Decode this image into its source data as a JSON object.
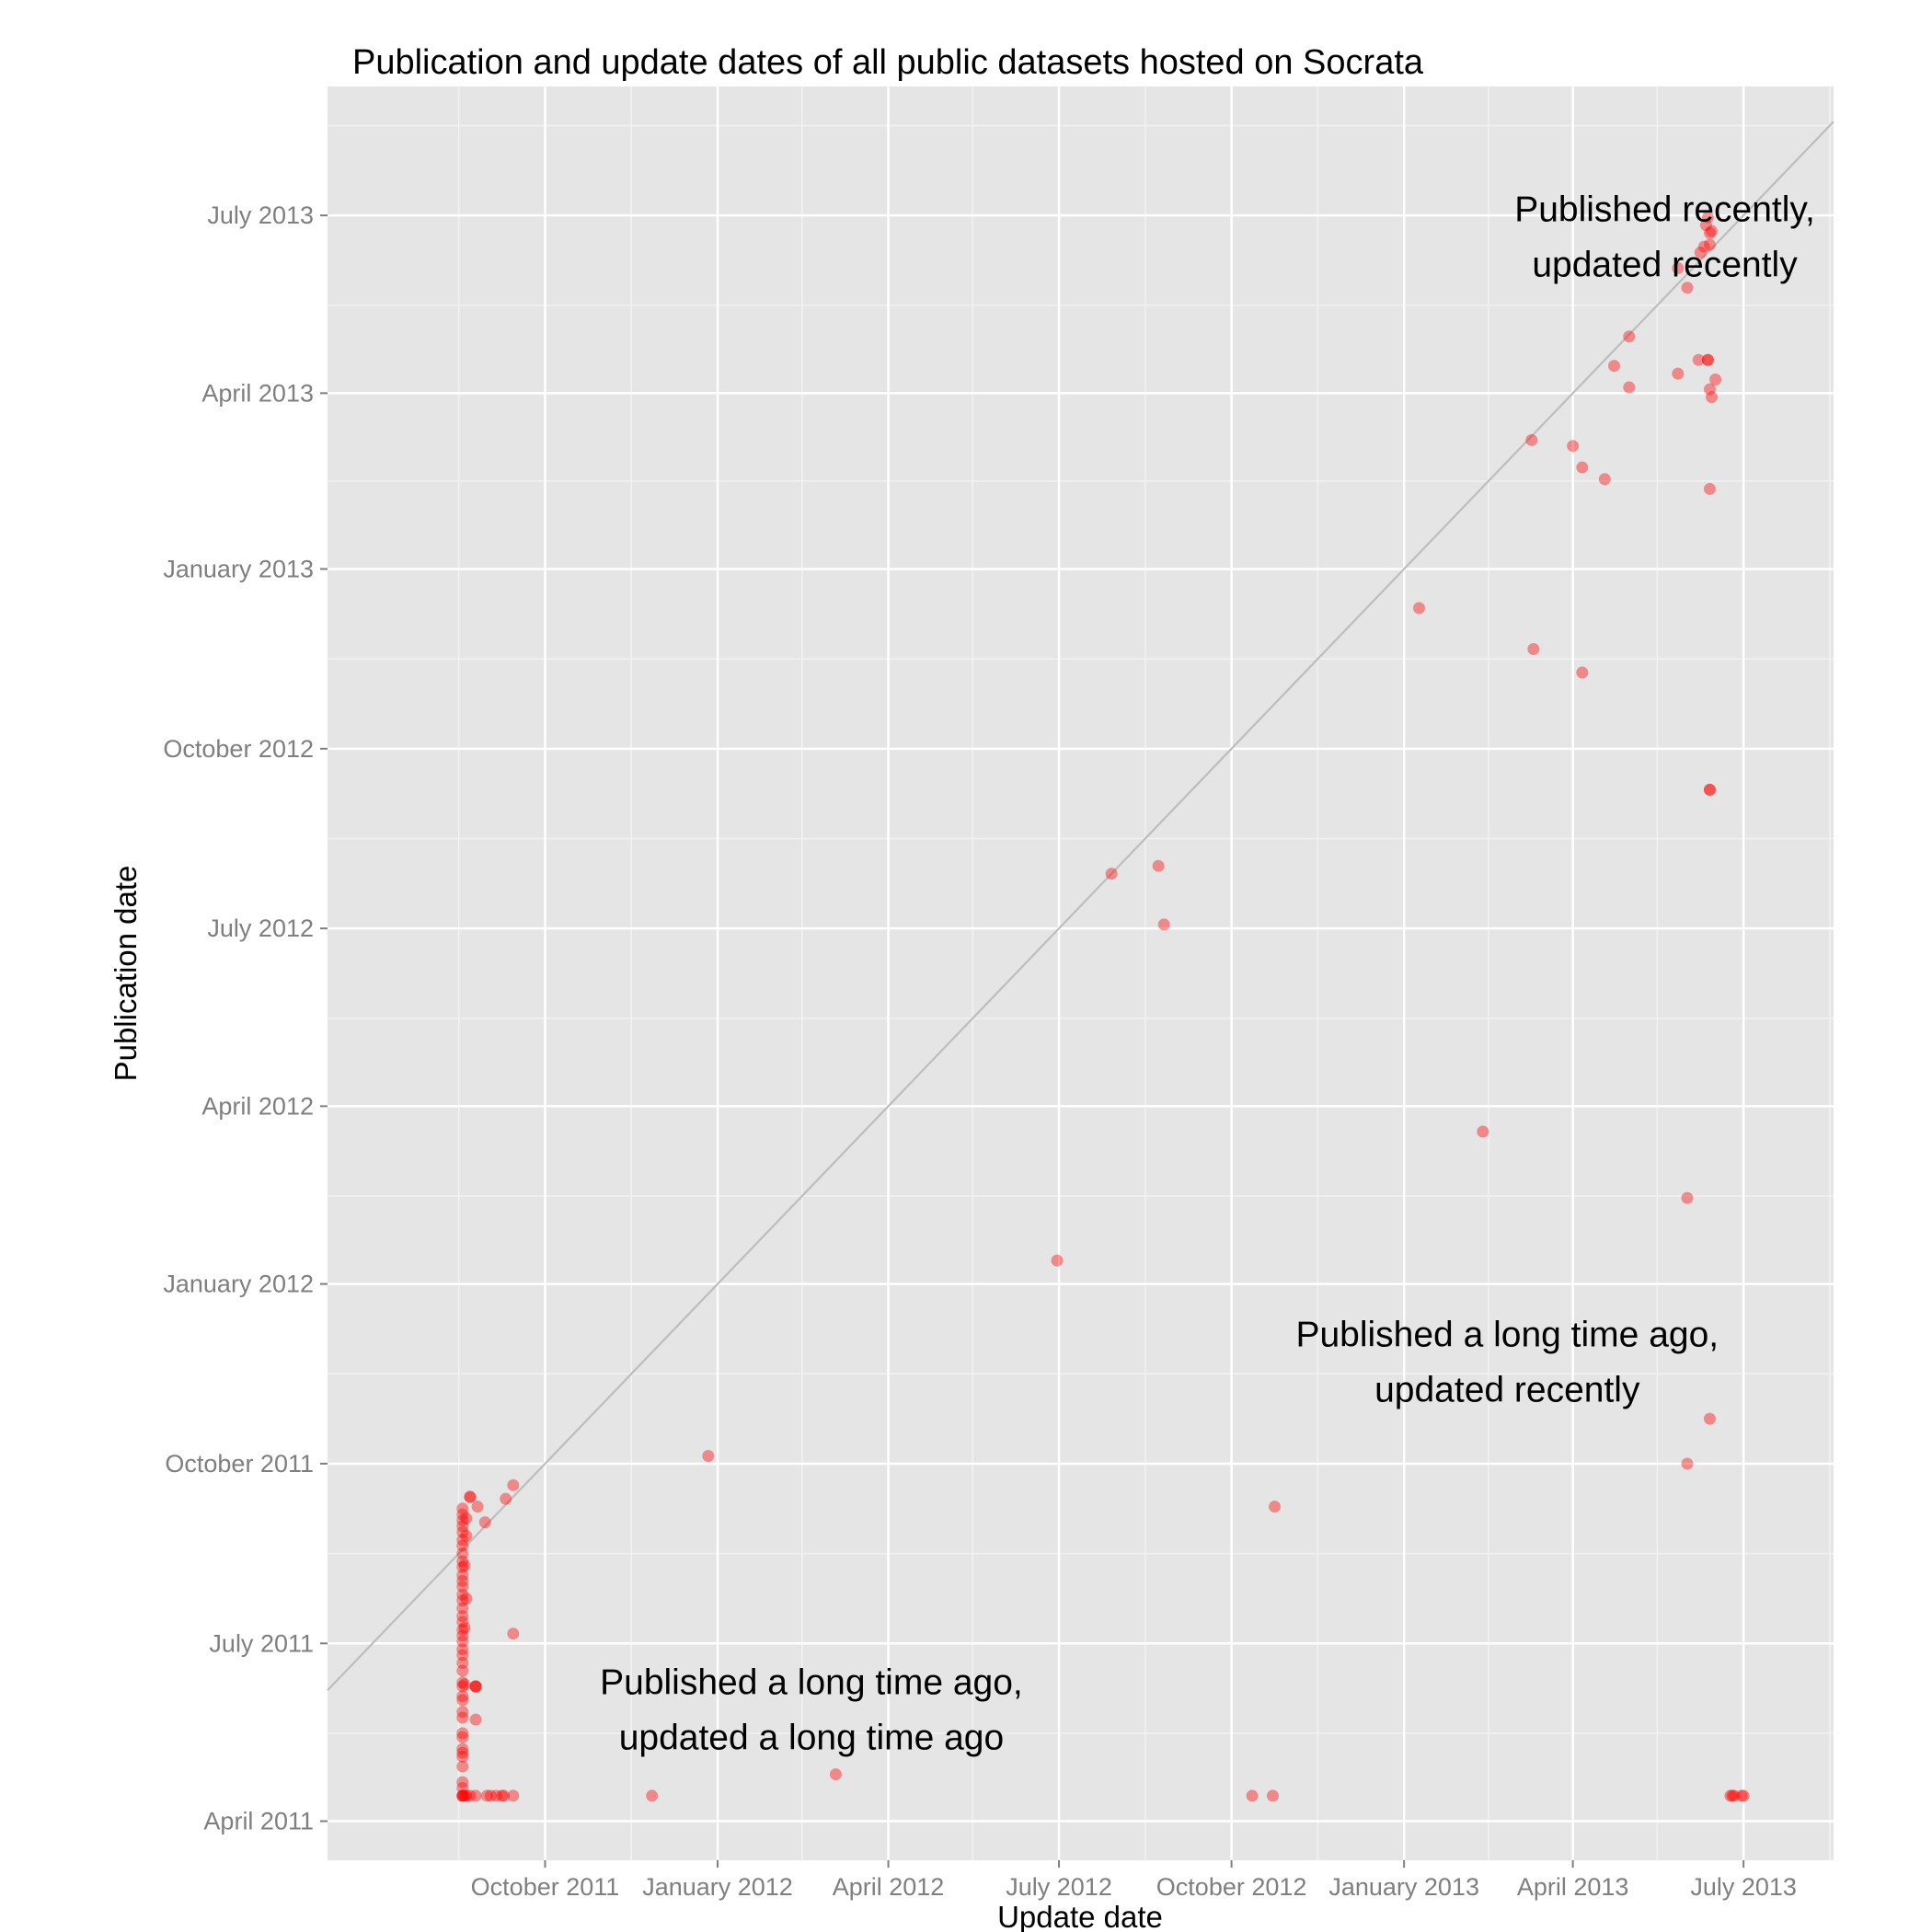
{
  "chart_data": {
    "type": "scatter",
    "title": "Publication and update dates of all public datasets hosted on Socrata",
    "xlabel": "Update date",
    "ylabel": "Publication date",
    "xlim": [
      "2011-06-07",
      "2013-08-18"
    ],
    "ylim": [
      "2011-03-12",
      "2013-09-05"
    ],
    "x_ticks": [
      {
        "date": "2011-10-01",
        "label": "October 2011"
      },
      {
        "date": "2012-01-01",
        "label": "January 2012"
      },
      {
        "date": "2012-04-01",
        "label": "April 2012"
      },
      {
        "date": "2012-07-01",
        "label": "July 2012"
      },
      {
        "date": "2012-10-01",
        "label": "October 2012"
      },
      {
        "date": "2013-01-01",
        "label": "January 2013"
      },
      {
        "date": "2013-04-01",
        "label": "April 2013"
      },
      {
        "date": "2013-07-01",
        "label": "July 2013"
      }
    ],
    "y_ticks": [
      {
        "date": "2011-04-01",
        "label": "April 2011"
      },
      {
        "date": "2011-07-01",
        "label": "July 2011"
      },
      {
        "date": "2011-10-01",
        "label": "October 2011"
      },
      {
        "date": "2012-01-01",
        "label": "January 2012"
      },
      {
        "date": "2012-04-01",
        "label": "April 2012"
      },
      {
        "date": "2012-07-01",
        "label": "July 2012"
      },
      {
        "date": "2012-10-01",
        "label": "October 2012"
      },
      {
        "date": "2013-01-01",
        "label": "January 2013"
      },
      {
        "date": "2013-04-01",
        "label": "April 2013"
      },
      {
        "date": "2013-07-01",
        "label": "July 2013"
      }
    ],
    "grid": true,
    "reference_line": "y = x",
    "colors": {
      "panel_background": "#e5e5e5",
      "grid_major": "#ffffff",
      "grid_minor": "#f2f2f2",
      "reference_line": "#bdbdbd",
      "point": "#ff0000"
    },
    "point_opacity": 0.4,
    "annotations": [
      {
        "lines": [
          "Published recently,",
          "updated recently"
        ],
        "x": "2013-05-20",
        "y": "2013-06-28"
      },
      {
        "lines": [
          "Published a long time ago,",
          "updated recently"
        ],
        "x": "2013-02-25",
        "y": "2011-11-30"
      },
      {
        "lines": [
          "Published a long time ago,",
          "updated a long time ago"
        ],
        "x": "2012-02-20",
        "y": "2011-06-05"
      }
    ],
    "points": [
      {
        "x": "2011-08-18",
        "y": "2011-04-14"
      },
      {
        "x": "2011-08-18",
        "y": "2011-04-14"
      },
      {
        "x": "2011-08-18",
        "y": "2011-04-14"
      },
      {
        "x": "2011-08-19",
        "y": "2011-04-14"
      },
      {
        "x": "2011-08-20",
        "y": "2011-04-14"
      },
      {
        "x": "2011-08-22",
        "y": "2011-04-14"
      },
      {
        "x": "2011-08-25",
        "y": "2011-04-14"
      },
      {
        "x": "2011-08-31",
        "y": "2011-04-14"
      },
      {
        "x": "2011-09-02",
        "y": "2011-04-14"
      },
      {
        "x": "2011-09-05",
        "y": "2011-04-14"
      },
      {
        "x": "2011-09-08",
        "y": "2011-04-14"
      },
      {
        "x": "2011-09-09",
        "y": "2011-04-14"
      },
      {
        "x": "2011-09-14",
        "y": "2011-04-14"
      },
      {
        "x": "2011-11-27",
        "y": "2011-04-14"
      },
      {
        "x": "2012-10-12",
        "y": "2011-04-14"
      },
      {
        "x": "2012-10-23",
        "y": "2011-04-14"
      },
      {
        "x": "2013-06-24",
        "y": "2011-04-14"
      },
      {
        "x": "2013-06-25",
        "y": "2011-04-14"
      },
      {
        "x": "2013-06-26",
        "y": "2011-04-14"
      },
      {
        "x": "2013-06-30",
        "y": "2011-04-14"
      },
      {
        "x": "2013-07-01",
        "y": "2011-04-14"
      },
      {
        "x": "2012-03-04",
        "y": "2011-04-25"
      },
      {
        "x": "2011-08-18",
        "y": "2011-04-18"
      },
      {
        "x": "2011-08-18",
        "y": "2011-04-21"
      },
      {
        "x": "2011-08-18",
        "y": "2011-04-29"
      },
      {
        "x": "2011-08-18",
        "y": "2011-05-04"
      },
      {
        "x": "2011-08-18",
        "y": "2011-05-06"
      },
      {
        "x": "2011-08-18",
        "y": "2011-05-08"
      },
      {
        "x": "2011-08-18",
        "y": "2011-05-14"
      },
      {
        "x": "2011-08-18",
        "y": "2011-05-16"
      },
      {
        "x": "2011-08-18",
        "y": "2011-05-24"
      },
      {
        "x": "2011-08-18",
        "y": "2011-05-27"
      },
      {
        "x": "2011-08-18",
        "y": "2011-06-02"
      },
      {
        "x": "2011-08-18",
        "y": "2011-06-04"
      },
      {
        "x": "2011-08-18",
        "y": "2011-06-09"
      },
      {
        "x": "2011-08-18",
        "y": "2011-06-11"
      },
      {
        "x": "2011-08-18",
        "y": "2011-06-17"
      },
      {
        "x": "2011-08-18",
        "y": "2011-06-21"
      },
      {
        "x": "2011-08-18",
        "y": "2011-06-25"
      },
      {
        "x": "2011-08-18",
        "y": "2011-06-28"
      },
      {
        "x": "2011-08-18",
        "y": "2011-07-02"
      },
      {
        "x": "2011-08-18",
        "y": "2011-07-05"
      },
      {
        "x": "2011-08-18",
        "y": "2011-07-08"
      },
      {
        "x": "2011-08-18",
        "y": "2011-07-12"
      },
      {
        "x": "2011-08-18",
        "y": "2011-07-15"
      },
      {
        "x": "2011-08-18",
        "y": "2011-07-19"
      },
      {
        "x": "2011-08-18",
        "y": "2011-07-23"
      },
      {
        "x": "2011-08-18",
        "y": "2011-07-26"
      },
      {
        "x": "2011-08-18",
        "y": "2011-07-30"
      },
      {
        "x": "2011-08-18",
        "y": "2011-08-02"
      },
      {
        "x": "2011-08-18",
        "y": "2011-08-05"
      },
      {
        "x": "2011-08-18",
        "y": "2011-08-09"
      },
      {
        "x": "2011-08-18",
        "y": "2011-08-12"
      },
      {
        "x": "2011-08-18",
        "y": "2011-08-16"
      },
      {
        "x": "2011-08-18",
        "y": "2011-08-20"
      },
      {
        "x": "2011-08-18",
        "y": "2011-08-23"
      },
      {
        "x": "2011-08-18",
        "y": "2011-08-27"
      },
      {
        "x": "2011-08-18",
        "y": "2011-08-30"
      },
      {
        "x": "2011-08-18",
        "y": "2011-09-02"
      },
      {
        "x": "2011-08-18",
        "y": "2011-09-05"
      },
      {
        "x": "2011-08-18",
        "y": "2011-09-08"
      },
      {
        "x": "2011-08-19",
        "y": "2011-06-10"
      },
      {
        "x": "2011-08-19",
        "y": "2011-07-09"
      },
      {
        "x": "2011-08-19",
        "y": "2011-08-10"
      },
      {
        "x": "2011-08-20",
        "y": "2011-07-24"
      },
      {
        "x": "2011-08-20",
        "y": "2011-08-25"
      },
      {
        "x": "2011-08-20",
        "y": "2011-09-03"
      },
      {
        "x": "2011-08-22",
        "y": "2011-09-14"
      },
      {
        "x": "2011-08-22",
        "y": "2011-09-14"
      },
      {
        "x": "2011-08-25",
        "y": "2011-06-09"
      },
      {
        "x": "2011-08-25",
        "y": "2011-06-09"
      },
      {
        "x": "2011-08-25",
        "y": "2011-06-09"
      },
      {
        "x": "2011-08-25",
        "y": "2011-05-23"
      },
      {
        "x": "2011-08-26",
        "y": "2011-09-09"
      },
      {
        "x": "2011-08-30",
        "y": "2011-09-01"
      },
      {
        "x": "2011-09-10",
        "y": "2011-09-13"
      },
      {
        "x": "2011-09-14",
        "y": "2011-07-06"
      },
      {
        "x": "2011-09-14",
        "y": "2011-09-20"
      },
      {
        "x": "2011-12-27",
        "y": "2011-10-05"
      },
      {
        "x": "2012-06-30",
        "y": "2012-01-13"
      },
      {
        "x": "2012-07-29",
        "y": "2012-07-29"
      },
      {
        "x": "2012-08-23",
        "y": "2012-08-02"
      },
      {
        "x": "2012-08-26",
        "y": "2012-07-03"
      },
      {
        "x": "2012-10-24",
        "y": "2011-09-09"
      },
      {
        "x": "2013-01-09",
        "y": "2012-12-12"
      },
      {
        "x": "2013-02-12",
        "y": "2012-03-19"
      },
      {
        "x": "2013-03-10",
        "y": "2013-03-08"
      },
      {
        "x": "2013-03-11",
        "y": "2012-11-21"
      },
      {
        "x": "2013-04-01",
        "y": "2013-03-05"
      },
      {
        "x": "2013-04-06",
        "y": "2013-02-22"
      },
      {
        "x": "2013-04-06",
        "y": "2012-11-09"
      },
      {
        "x": "2013-04-18",
        "y": "2013-02-16"
      },
      {
        "x": "2013-04-23",
        "y": "2013-04-15"
      },
      {
        "x": "2013-05-01",
        "y": "2013-04-04"
      },
      {
        "x": "2013-05-01",
        "y": "2013-04-30"
      },
      {
        "x": "2013-05-27",
        "y": "2013-04-11"
      },
      {
        "x": "2013-05-27",
        "y": "2013-06-04"
      },
      {
        "x": "2013-06-01",
        "y": "2013-05-25"
      },
      {
        "x": "2013-06-01",
        "y": "2012-02-14"
      },
      {
        "x": "2013-06-01",
        "y": "2011-10-01"
      },
      {
        "x": "2013-06-07",
        "y": "2013-04-18"
      },
      {
        "x": "2013-06-08",
        "y": "2013-06-12"
      },
      {
        "x": "2013-06-10",
        "y": "2013-06-15"
      },
      {
        "x": "2013-06-11",
        "y": "2013-06-26"
      },
      {
        "x": "2013-06-12",
        "y": "2013-04-18"
      },
      {
        "x": "2013-06-12",
        "y": "2013-04-18"
      },
      {
        "x": "2013-06-12",
        "y": "2013-06-30"
      },
      {
        "x": "2013-06-13",
        "y": "2013-06-16"
      },
      {
        "x": "2013-06-13",
        "y": "2013-06-22"
      },
      {
        "x": "2013-06-13",
        "y": "2013-02-11"
      },
      {
        "x": "2013-06-13",
        "y": "2013-04-03"
      },
      {
        "x": "2013-06-13",
        "y": "2012-09-10"
      },
      {
        "x": "2013-06-13",
        "y": "2012-09-10"
      },
      {
        "x": "2013-06-13",
        "y": "2011-10-24"
      },
      {
        "x": "2013-06-14",
        "y": "2013-06-23"
      },
      {
        "x": "2013-06-14",
        "y": "2013-03-30"
      },
      {
        "x": "2013-06-16",
        "y": "2013-04-08"
      }
    ]
  }
}
